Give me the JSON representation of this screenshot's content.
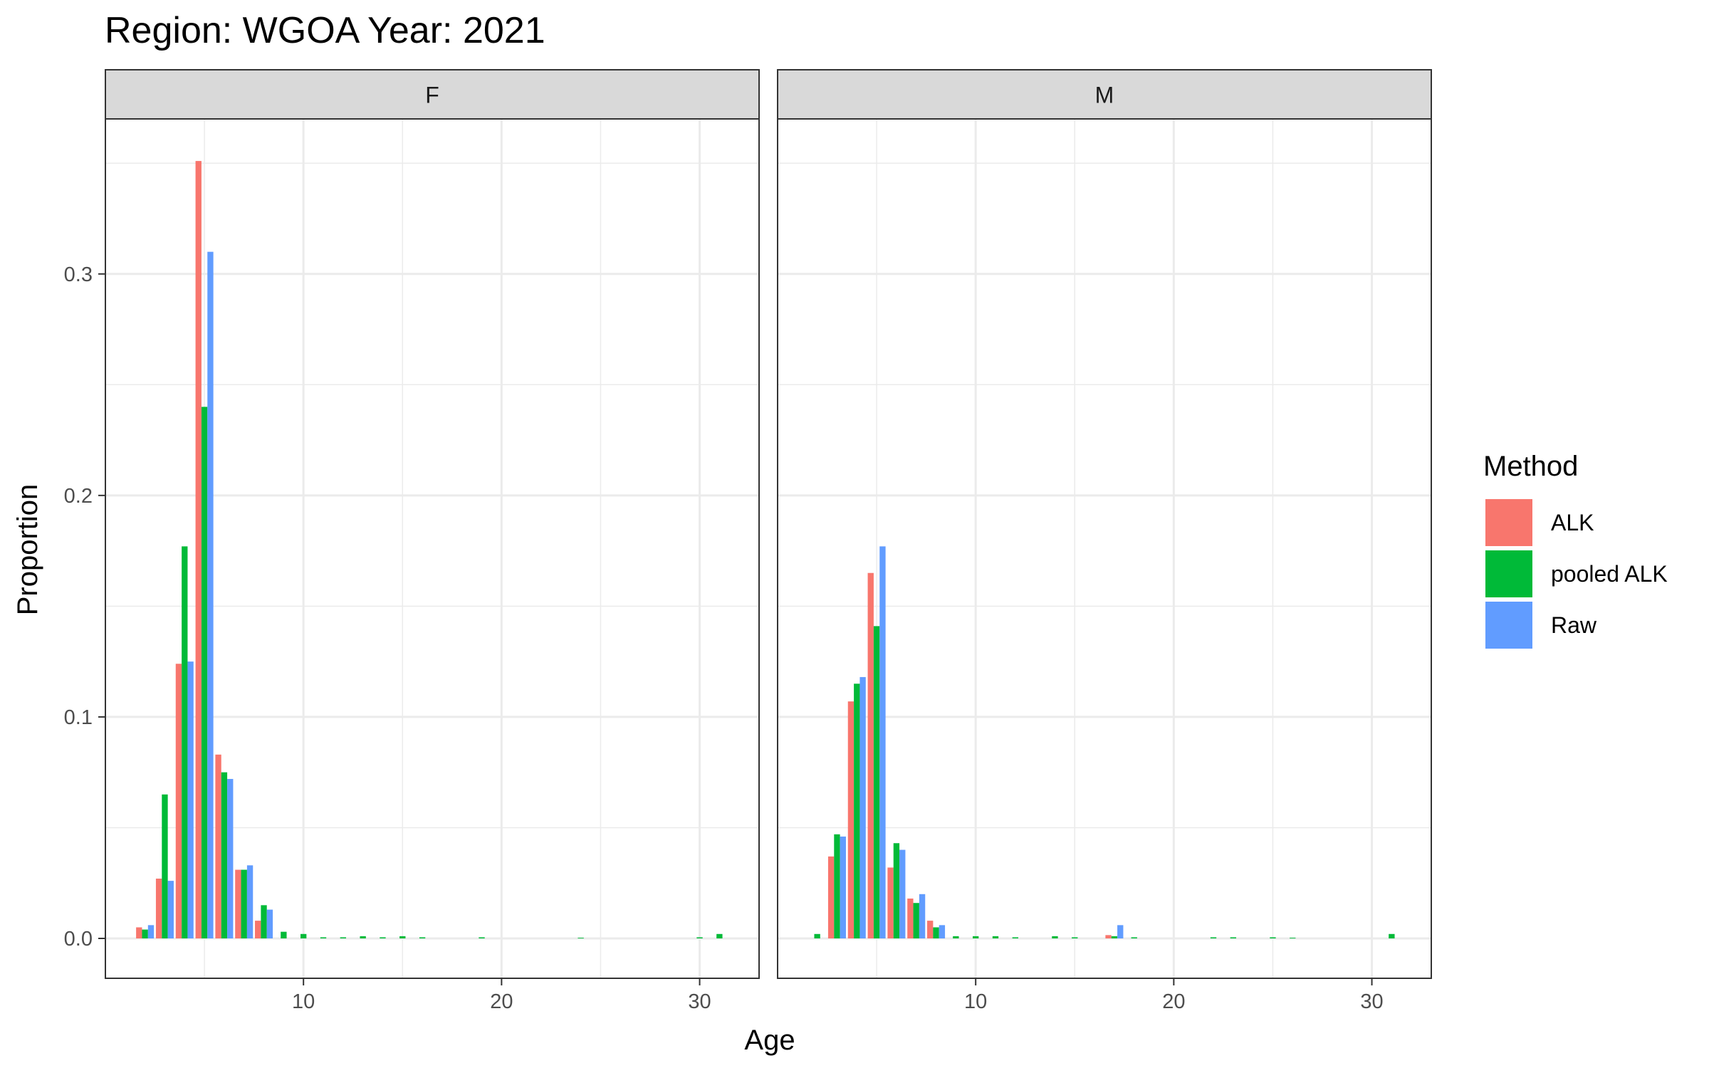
{
  "chart_data": {
    "type": "bar",
    "title": "Region: WGOA Year: 2021",
    "xlabel": "Age",
    "ylabel": "Proportion",
    "xlim": [
      0,
      33
    ],
    "ylim": [
      -0.018,
      0.37
    ],
    "x_ticks": [
      10,
      20,
      30
    ],
    "x_tick_labels": [
      "10",
      "20",
      "30"
    ],
    "y_ticks": [
      0.0,
      0.1,
      0.2,
      0.3
    ],
    "y_tick_labels": [
      "0.0",
      "0.1",
      "0.2",
      "0.3"
    ],
    "grid": true,
    "legend": {
      "title": "Method",
      "position": "right",
      "entries": [
        "ALK",
        "pooled ALK",
        "Raw"
      ]
    },
    "series_colors": {
      "ALK": "#F8766D",
      "pooled ALK": "#00BA38",
      "Raw": "#619CFF"
    },
    "panels": [
      {
        "label": "F",
        "series": [
          {
            "name": "ALK",
            "values": [
              [
                2,
                0.005
              ],
              [
                3,
                0.027
              ],
              [
                4,
                0.124
              ],
              [
                5,
                0.351
              ],
              [
                6,
                0.083
              ],
              [
                7,
                0.031
              ],
              [
                8,
                0.008
              ]
            ]
          },
          {
            "name": "pooled ALK",
            "values": [
              [
                2,
                0.004
              ],
              [
                3,
                0.065
              ],
              [
                4,
                0.177
              ],
              [
                5,
                0.24
              ],
              [
                6,
                0.075
              ],
              [
                7,
                0.031
              ],
              [
                8,
                0.015
              ],
              [
                9,
                0.003
              ],
              [
                10,
                0.002
              ],
              [
                11,
                0.0005
              ],
              [
                12,
                0.0005
              ],
              [
                13,
                0.001
              ],
              [
                14,
                0.0005
              ],
              [
                15,
                0.001
              ],
              [
                16,
                0.0005
              ],
              [
                19,
                0.0005
              ],
              [
                24,
                0.0003
              ],
              [
                30,
                0.0005
              ],
              [
                31,
                0.002
              ]
            ]
          },
          {
            "name": "Raw",
            "values": [
              [
                2,
                0.006
              ],
              [
                3,
                0.026
              ],
              [
                4,
                0.125
              ],
              [
                5,
                0.31
              ],
              [
                6,
                0.072
              ],
              [
                7,
                0.033
              ],
              [
                8,
                0.013
              ]
            ]
          }
        ]
      },
      {
        "label": "M",
        "series": [
          {
            "name": "ALK",
            "values": [
              [
                3,
                0.037
              ],
              [
                4,
                0.107
              ],
              [
                5,
                0.165
              ],
              [
                6,
                0.032
              ],
              [
                7,
                0.018
              ],
              [
                8,
                0.008
              ],
              [
                17,
                0.0015
              ]
            ]
          },
          {
            "name": "pooled ALK",
            "values": [
              [
                2,
                0.002
              ],
              [
                3,
                0.047
              ],
              [
                4,
                0.115
              ],
              [
                5,
                0.141
              ],
              [
                6,
                0.043
              ],
              [
                7,
                0.016
              ],
              [
                8,
                0.005
              ],
              [
                9,
                0.001
              ],
              [
                10,
                0.001
              ],
              [
                11,
                0.001
              ],
              [
                12,
                0.0005
              ],
              [
                14,
                0.001
              ],
              [
                15,
                0.0005
              ],
              [
                17,
                0.001
              ],
              [
                18,
                0.0005
              ],
              [
                22,
                0.0005
              ],
              [
                23,
                0.0005
              ],
              [
                25,
                0.0005
              ],
              [
                26,
                0.0003
              ],
              [
                31,
                0.002
              ]
            ]
          },
          {
            "name": "Raw",
            "values": [
              [
                3,
                0.046
              ],
              [
                4,
                0.118
              ],
              [
                5,
                0.177
              ],
              [
                6,
                0.04
              ],
              [
                7,
                0.02
              ],
              [
                8,
                0.006
              ],
              [
                17,
                0.006
              ]
            ]
          }
        ]
      }
    ]
  }
}
